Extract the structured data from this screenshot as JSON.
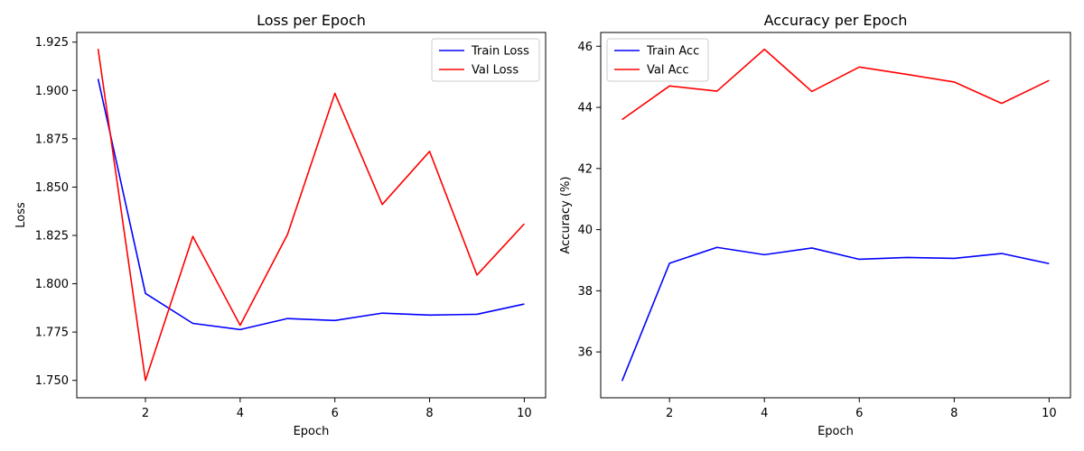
{
  "chart_data": [
    {
      "type": "line",
      "title": "Loss per Epoch",
      "xlabel": "Epoch",
      "ylabel": "Loss",
      "x": [
        1,
        2,
        3,
        4,
        5,
        6,
        7,
        8,
        9,
        10
      ],
      "xlim": [
        0.55,
        10.45
      ],
      "ylim": [
        1.741,
        1.93
      ],
      "xticks": [
        2,
        4,
        6,
        8,
        10
      ],
      "xtick_labels": [
        "2",
        "4",
        "6",
        "8",
        "10"
      ],
      "yticks": [
        1.75,
        1.775,
        1.8,
        1.825,
        1.85,
        1.875,
        1.9,
        1.925
      ],
      "ytick_labels": [
        "1.750",
        "1.775",
        "1.800",
        "1.825",
        "1.850",
        "1.875",
        "1.900",
        "1.925"
      ],
      "grid": false,
      "legend_position": "top-right",
      "series": [
        {
          "name": "Train Loss",
          "color": "#0000ff",
          "values": [
            1.906,
            1.795,
            1.7795,
            1.7763,
            1.782,
            1.781,
            1.7848,
            1.7838,
            1.7842,
            1.7895
          ]
        },
        {
          "name": "Val Loss",
          "color": "#ff0000",
          "values": [
            1.9215,
            1.75,
            1.8245,
            1.7785,
            1.8255,
            1.8985,
            1.841,
            1.8685,
            1.8045,
            1.831
          ]
        }
      ]
    },
    {
      "type": "line",
      "title": "Accuracy per Epoch",
      "xlabel": "Epoch",
      "ylabel": "Accuracy (%)",
      "x": [
        1,
        2,
        3,
        4,
        5,
        6,
        7,
        8,
        9,
        10
      ],
      "xlim": [
        0.55,
        10.45
      ],
      "ylim": [
        34.5,
        46.45
      ],
      "xticks": [
        2,
        4,
        6,
        8,
        10
      ],
      "xtick_labels": [
        "2",
        "4",
        "6",
        "8",
        "10"
      ],
      "yticks": [
        36,
        38,
        40,
        42,
        44,
        46
      ],
      "ytick_labels": [
        "36",
        "38",
        "40",
        "42",
        "44",
        "46"
      ],
      "grid": false,
      "legend_position": "top-left",
      "series": [
        {
          "name": "Train Acc",
          "color": "#0000ff",
          "values": [
            35.05,
            38.9,
            39.42,
            39.18,
            39.4,
            39.03,
            39.09,
            39.06,
            39.22,
            38.89
          ]
        },
        {
          "name": "Val Acc",
          "color": "#ff0000",
          "values": [
            43.6,
            44.7,
            44.53,
            45.9,
            44.52,
            45.32,
            45.08,
            44.83,
            44.13,
            44.88
          ]
        }
      ]
    }
  ]
}
